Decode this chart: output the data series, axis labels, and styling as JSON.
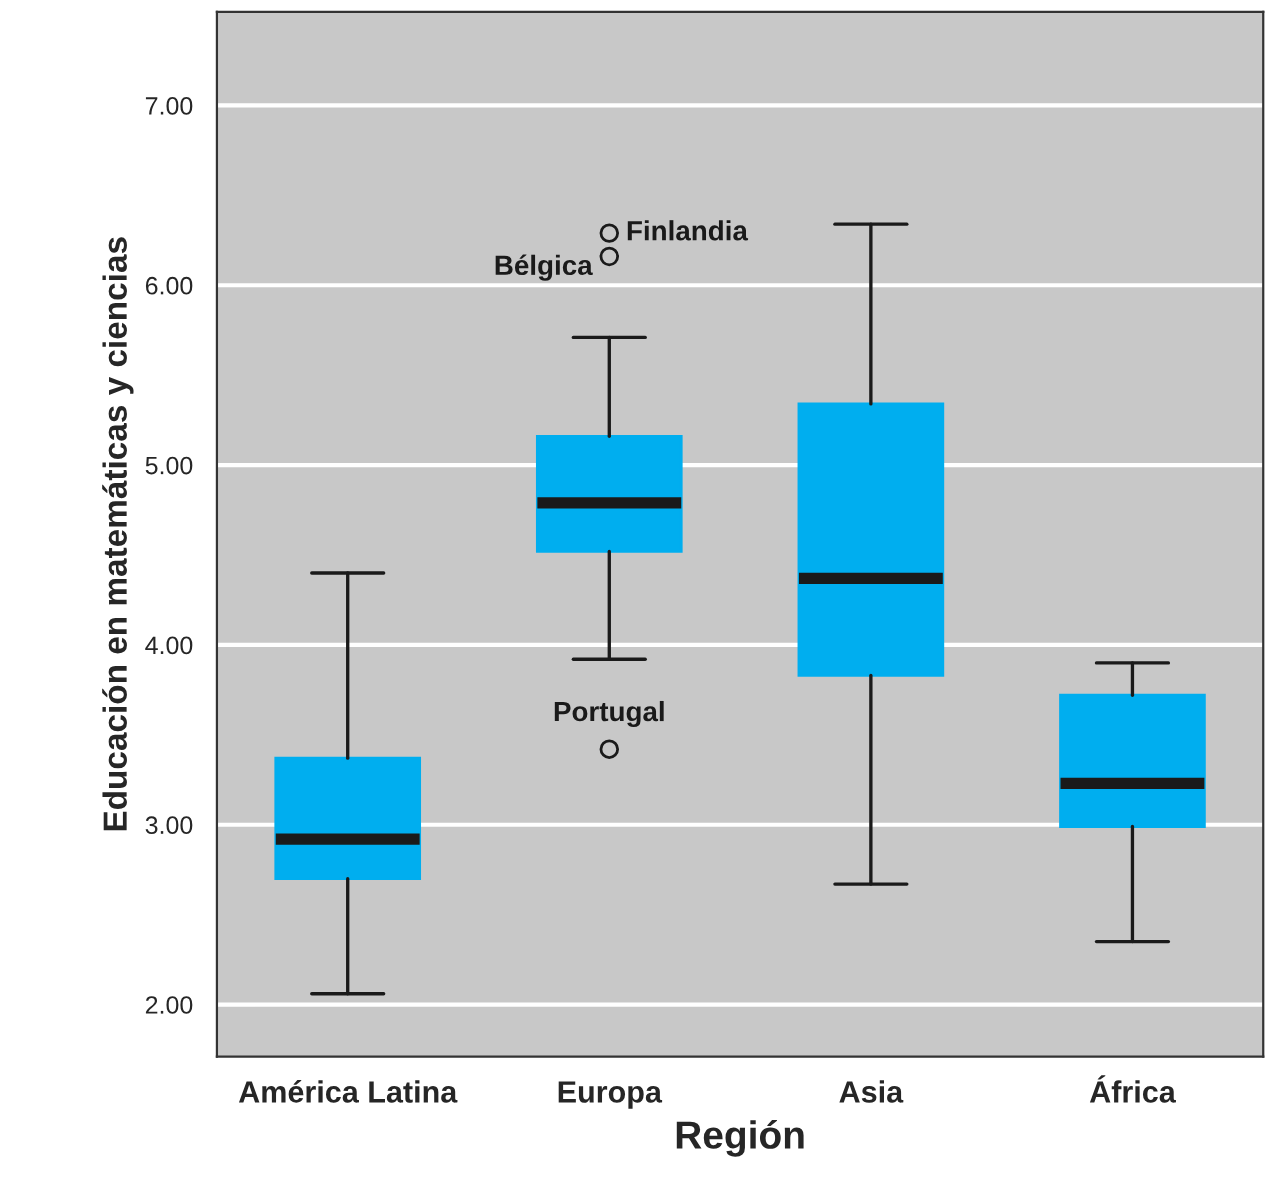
{
  "chart_data": {
    "type": "box",
    "xlabel": "Región",
    "ylabel": "Educación en matemáticas y ciencias",
    "categories": [
      "América Latina",
      "Europa",
      "Asia",
      "África"
    ],
    "boxes": [
      {
        "low": 2.06,
        "q1": 2.7,
        "median": 2.92,
        "q3": 3.37,
        "high": 4.4
      },
      {
        "low": 3.92,
        "q1": 4.52,
        "median": 4.79,
        "q3": 5.16,
        "high": 5.71,
        "outliers": [
          6.29,
          6.16,
          3.42
        ]
      },
      {
        "low": 2.67,
        "q1": 3.83,
        "median": 4.37,
        "q3": 5.34,
        "high": 6.34
      },
      {
        "low": 2.35,
        "q1": 2.99,
        "median": 3.23,
        "q3": 3.72,
        "high": 3.9
      }
    ],
    "color": "#00aeef",
    "ylim": [
      1.71,
      7.52
    ],
    "yticks": [
      {
        "value": 2,
        "label": "2.00"
      },
      {
        "value": 3,
        "label": "3.00"
      },
      {
        "value": 4,
        "label": "4.00"
      },
      {
        "value": 5,
        "label": "5.00"
      },
      {
        "value": 6,
        "label": "6.00"
      },
      {
        "value": 7,
        "label": "7.00"
      }
    ],
    "grid": "y",
    "annotations": [
      "Finlandia",
      "Bélgica",
      "Portugal"
    ]
  }
}
